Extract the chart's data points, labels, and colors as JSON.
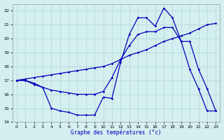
{
  "xlabel": "Graphe des températures (°c)",
  "bg_color": "#d4efef",
  "line_color": "#0000bb",
  "grid_color": "#b0d8d8",
  "xlim": [
    -0.5,
    23.5
  ],
  "ylim": [
    14,
    22.5
  ],
  "xticks": [
    0,
    1,
    2,
    3,
    4,
    5,
    6,
    7,
    8,
    9,
    10,
    11,
    12,
    13,
    14,
    15,
    16,
    17,
    18,
    19,
    20,
    21,
    22,
    23
  ],
  "yticks": [
    14,
    15,
    16,
    17,
    18,
    19,
    20,
    21,
    22
  ],
  "series": [
    {
      "x": [
        0,
        1,
        2,
        3,
        4,
        5,
        6,
        7,
        8,
        9,
        10,
        11,
        12,
        13,
        14,
        15,
        16,
        17,
        18,
        19,
        20,
        21,
        22,
        23
      ],
      "y": [
        17.0,
        17.0,
        16.7,
        16.5,
        15.0,
        14.8,
        14.7,
        14.5,
        14.5,
        14.5,
        15.8,
        15.7,
        18.3,
        20.3,
        21.5,
        21.5,
        20.9,
        22.2,
        21.5,
        19.8,
        17.8,
        16.4,
        14.8,
        14.8
      ]
    },
    {
      "x": [
        0,
        1,
        2,
        3,
        4,
        5,
        6,
        7,
        8,
        9,
        10,
        11,
        12,
        13,
        14,
        15,
        16,
        17,
        18,
        19,
        20,
        21,
        22,
        23
      ],
      "y": [
        17.0,
        17.0,
        16.8,
        16.5,
        16.3,
        16.2,
        16.1,
        16.0,
        16.0,
        16.0,
        16.2,
        17.2,
        18.5,
        19.5,
        20.3,
        20.5,
        20.5,
        20.8,
        20.8,
        19.8,
        19.8,
        17.8,
        16.4,
        14.8
      ]
    },
    {
      "x": [
        0,
        1,
        2,
        3,
        4,
        5,
        6,
        7,
        8,
        9,
        10,
        11,
        12,
        13,
        14,
        15,
        16,
        17,
        18,
        19,
        20,
        21,
        22,
        23
      ],
      "y": [
        17.0,
        17.1,
        17.2,
        17.3,
        17.4,
        17.5,
        17.6,
        17.7,
        17.8,
        17.9,
        18.0,
        18.2,
        18.5,
        18.8,
        19.0,
        19.2,
        19.5,
        19.8,
        20.0,
        20.2,
        20.4,
        20.7,
        21.0,
        21.1
      ]
    }
  ]
}
